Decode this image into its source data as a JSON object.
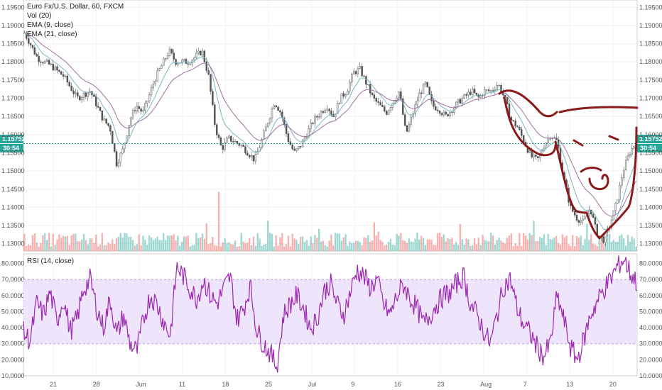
{
  "chart_data": [
    {
      "type": "candlestick",
      "legend": [
        "Euro Fx/U.S. Dollar, 60, FXCM",
        "Vol (20)",
        "EMA (9, close)",
        "EMA (21, close)"
      ],
      "y_ticks": [
        "1.19500",
        "1.19000",
        "1.18500",
        "1.18000",
        "1.17500",
        "1.17000",
        "1.16500",
        "1.16000",
        "1.15500",
        "1.15000",
        "1.14500",
        "1.14000",
        "1.13500",
        "1.13000"
      ],
      "ylim": [
        1.128,
        1.197
      ],
      "last_price": "1.15752",
      "countdown": "30:54",
      "x_ticks": [
        "21",
        "28",
        "Jun",
        "11",
        "18",
        "25",
        "Jul",
        "9",
        "16",
        "23",
        "Aug",
        "7",
        "13",
        "20"
      ],
      "price_path": [
        [
          0,
          1.188
        ],
        [
          2,
          1.181
        ],
        [
          4,
          1.179
        ],
        [
          6,
          1.176
        ],
        [
          8,
          1.17
        ],
        [
          10,
          1.172
        ],
        [
          12,
          1.164
        ],
        [
          13,
          1.162
        ],
        [
          14,
          1.152
        ],
        [
          15,
          1.156
        ],
        [
          16,
          1.164
        ],
        [
          17,
          1.168
        ],
        [
          18,
          1.166
        ],
        [
          20,
          1.176
        ],
        [
          22,
          1.183
        ],
        [
          23,
          1.18
        ],
        [
          25,
          1.18
        ],
        [
          27,
          1.183
        ],
        [
          28,
          1.176
        ],
        [
          29,
          1.162
        ],
        [
          30,
          1.156
        ],
        [
          31,
          1.159
        ],
        [
          33,
          1.157
        ],
        [
          35,
          1.153
        ],
        [
          36,
          1.158
        ],
        [
          38,
          1.169
        ],
        [
          39,
          1.166
        ],
        [
          40,
          1.159
        ],
        [
          41,
          1.155
        ],
        [
          42,
          1.157
        ],
        [
          44,
          1.164
        ],
        [
          46,
          1.168
        ],
        [
          47,
          1.165
        ],
        [
          48,
          1.17
        ],
        [
          49,
          1.172
        ],
        [
          50,
          1.177
        ],
        [
          51,
          1.178
        ],
        [
          52,
          1.174
        ],
        [
          53,
          1.17
        ],
        [
          54,
          1.168
        ],
        [
          55,
          1.166
        ],
        [
          56,
          1.169
        ],
        [
          57,
          1.172
        ],
        [
          58,
          1.16
        ],
        [
          60,
          1.171
        ],
        [
          61,
          1.174
        ],
        [
          62,
          1.168
        ],
        [
          63,
          1.167
        ],
        [
          64,
          1.165
        ],
        [
          66,
          1.169
        ],
        [
          68,
          1.172
        ],
        [
          69,
          1.17
        ],
        [
          70,
          1.172
        ],
        [
          71,
          1.172
        ],
        [
          72,
          1.174
        ],
        [
          73,
          1.17
        ],
        [
          74,
          1.164
        ],
        [
          75,
          1.162
        ],
        [
          76,
          1.158
        ],
        [
          77,
          1.154
        ],
        [
          78,
          1.153
        ],
        [
          79,
          1.157
        ],
        [
          80,
          1.16
        ],
        [
          81,
          1.158
        ],
        [
          82,
          1.148
        ],
        [
          83,
          1.14
        ],
        [
          84,
          1.137
        ],
        [
          85,
          1.136
        ],
        [
          86,
          1.14
        ],
        [
          87,
          1.133
        ],
        [
          88,
          1.131
        ],
        [
          89,
          1.135
        ],
        [
          90,
          1.141
        ],
        [
          91,
          1.15
        ],
        [
          92,
          1.155
        ],
        [
          93,
          1.158
        ]
      ],
      "ema_fast_color": "#7cb5c4",
      "ema_slow_color": "#a070a0",
      "bull_color": "#26a69a",
      "bear_color": "#ef5350",
      "price_line_color": "#26a69a"
    },
    {
      "type": "line",
      "title": "RSI (14, close)",
      "y_ticks": [
        "80.0000",
        "70.0000",
        "60.0000",
        "50.0000",
        "40.0000",
        "30.0000",
        "20.0000",
        "10.0000"
      ],
      "ylim": [
        10,
        86
      ],
      "band": [
        30,
        70
      ],
      "series": [
        {
          "name": "RSI (14, close)",
          "values": [
            37,
            32,
            55,
            48,
            62,
            44,
            58,
            38,
            45,
            64,
            70,
            52,
            40,
            58,
            35,
            48,
            30,
            25,
            45,
            60,
            55,
            44,
            35,
            78,
            72,
            64,
            58,
            70,
            60,
            55,
            64,
            72,
            45,
            52,
            66,
            38,
            30,
            24,
            16,
            48,
            55,
            60,
            52,
            40,
            45,
            62,
            68,
            55,
            48,
            62,
            76,
            72,
            65,
            70,
            54,
            48,
            60,
            67,
            58,
            52,
            42,
            48,
            55,
            60,
            62,
            68,
            72,
            55,
            48,
            38,
            30,
            48,
            66,
            70,
            52,
            42,
            36,
            28,
            22,
            30,
            60,
            45,
            28,
            20,
            32,
            48,
            56,
            64,
            70,
            78,
            83,
            74,
            68
          ]
        }
      ],
      "color": "#9c27b0",
      "band_fill": "#eee4fb"
    }
  ]
}
